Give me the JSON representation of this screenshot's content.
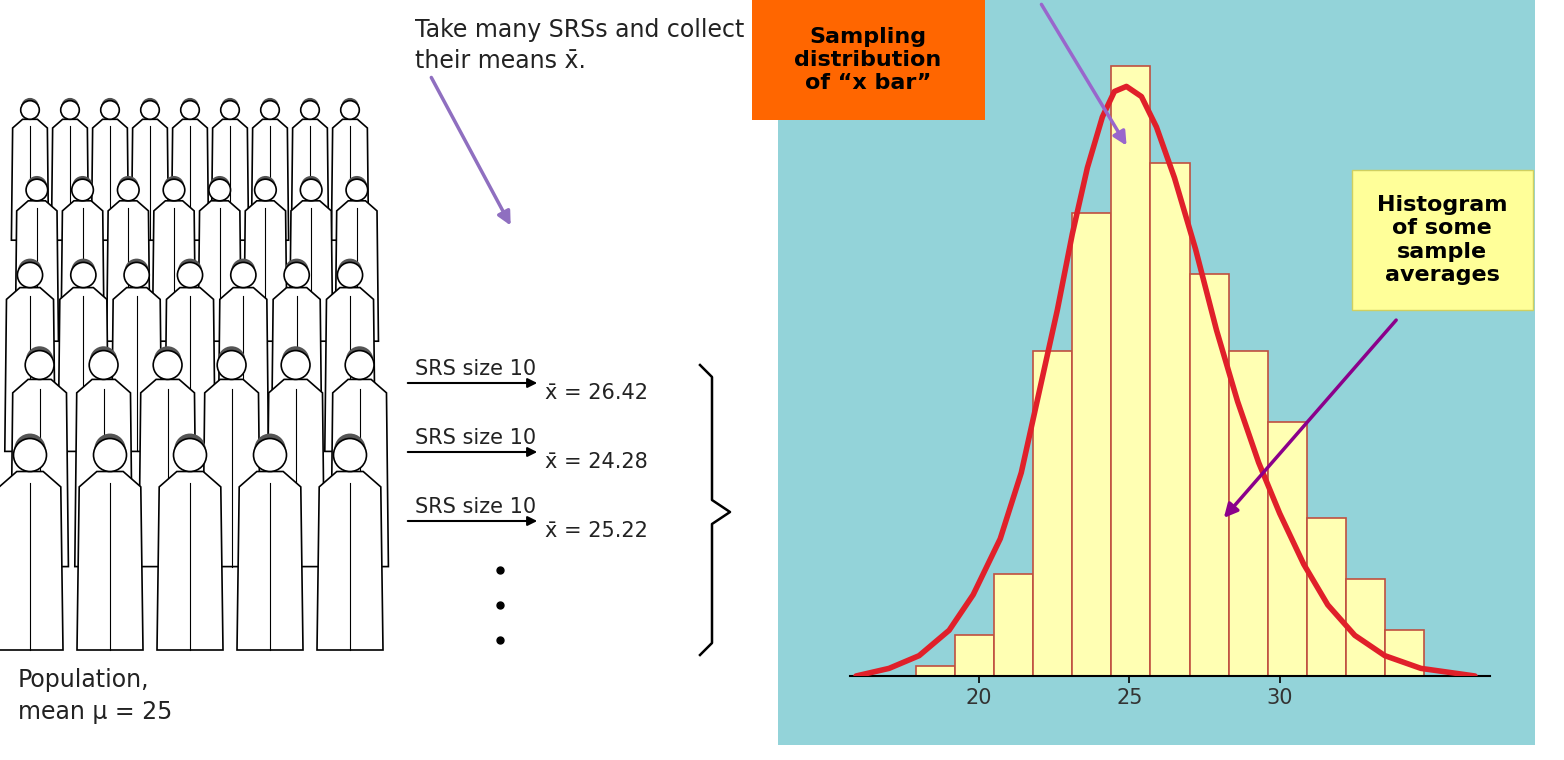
{
  "chart_data": {
    "type": "histogram",
    "bins": [
      17.9,
      19.2,
      20.5,
      21.8,
      23.1,
      24.4,
      25.7,
      27.0,
      28.3,
      29.6,
      30.9,
      32.2,
      33.5,
      34.8
    ],
    "counts": [
      2,
      8,
      20,
      64,
      91,
      120,
      101,
      79,
      64,
      50,
      31,
      19,
      9
    ],
    "color": "#ffffb3",
    "xlim": [
      15.7,
      37.0
    ],
    "xticks": [
      20,
      25,
      30
    ],
    "ylim": [
      0,
      133
    ],
    "tick_labels": "x",
    "curve": {
      "type": "line",
      "color": "#e0202a",
      "x": [
        15.9,
        17.0,
        18.0,
        19.0,
        19.8,
        20.7,
        21.4,
        22.0,
        22.6,
        23.1,
        23.6,
        24.1,
        24.5,
        24.9,
        25.4,
        25.9,
        26.5,
        27.2,
        27.9,
        28.6,
        29.3,
        30.0,
        30.8,
        31.6,
        32.5,
        33.5,
        34.7,
        36.5
      ],
      "values": [
        0,
        1.5,
        4,
        9,
        16,
        27,
        40,
        56,
        72,
        87,
        100,
        110,
        115,
        116,
        114,
        108,
        98,
        84,
        68,
        54,
        42,
        32,
        22,
        14,
        8,
        4,
        1.5,
        0
      ]
    },
    "annotations": [
      {
        "text": "Sampling\ndistribution\nof “x bar”"
      },
      {
        "text": "Histogram\nof some\nsample\naverages"
      }
    ]
  },
  "diagram": {
    "caption": "Take many SRSs and collect\ntheir means x̄.",
    "samples": [
      {
        "arrow_label": "SRS size 10",
        "result": "x̄ = 26.42"
      },
      {
        "arrow_label": "SRS size 10",
        "result": "x̄ = 24.28"
      },
      {
        "arrow_label": "SRS size 10",
        "result": "x̄ = 25.22"
      }
    ],
    "population": "Population,\nmean μ = 25"
  }
}
